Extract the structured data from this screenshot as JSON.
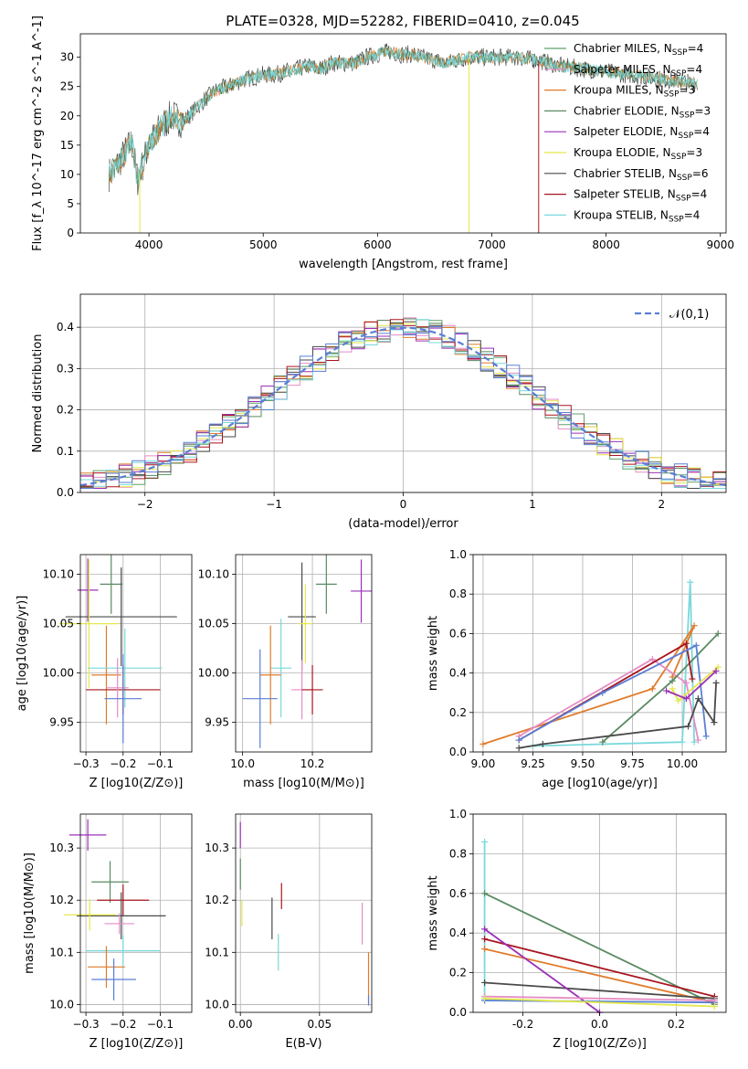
{
  "title": "PLATE=0328, MJD=52282, FIBERID=0410, z=0.045",
  "colors": {
    "Chabrier MILES": "#5fa06a",
    "Salpeter MILES": "#e58cc4",
    "Kroupa MILES": "#e07b2a",
    "Chabrier ELODIE": "#5a8a62",
    "Salpeter ELODIE": "#9b30b8",
    "Kroupa ELODIE": "#e4e84a",
    "Chabrier STELIB": "#4a4a4a",
    "Salpeter STELIB": "#a8141e",
    "Kroupa STELIB": "#7ad8dc",
    "extra_blue": "#5a7fd6"
  },
  "chart_data": [
    {
      "id": "spectrum",
      "type": "line",
      "title": "PLATE=0328, MJD=52282, FIBERID=0410, z=0.045",
      "xlabel": "wavelength [Angstrom, rest frame]",
      "ylabel": "Flux [f_λ 10^-17 erg cm^-2 s^-1 A^-1]",
      "xlim": [
        3400,
        9050
      ],
      "ylim": [
        0,
        34
      ],
      "xticks": [
        4000,
        5000,
        6000,
        7000,
        8000,
        9000
      ],
      "yticks": [
        0,
        5,
        10,
        15,
        20,
        25,
        30
      ],
      "legend_position": "top-right",
      "legend": [
        {
          "label": "Chabrier MILES, N",
          "sub": "SSP",
          "suffix": "=4"
        },
        {
          "label": "Salpeter MILES, N",
          "sub": "SSP",
          "suffix": "=4"
        },
        {
          "label": "Kroupa MILES, N",
          "sub": "SSP",
          "suffix": "=3"
        },
        {
          "label": "Chabrier ELODIE, N",
          "sub": "SSP",
          "suffix": "=3"
        },
        {
          "label": "Salpeter ELODIE, N",
          "sub": "SSP",
          "suffix": "=4"
        },
        {
          "label": "Kroupa ELODIE, N",
          "sub": "SSP",
          "suffix": "=3"
        },
        {
          "label": "Chabrier STELIB, N",
          "sub": "SSP",
          "suffix": "=6"
        },
        {
          "label": "Salpeter STELIB, N",
          "sub": "SSP",
          "suffix": "=4"
        },
        {
          "label": "Kroupa STELIB, N",
          "sub": "SSP",
          "suffix": "=4"
        }
      ],
      "envelope": {
        "x": [
          3650,
          3700,
          3750,
          3800,
          3850,
          3900,
          3950,
          4000,
          4100,
          4200,
          4300,
          4400,
          4500,
          4600,
          4700,
          4800,
          4900,
          5000,
          5100,
          5200,
          5300,
          5400,
          5500,
          5600,
          5700,
          5800,
          5900,
          6000,
          6100,
          6200,
          6300,
          6400,
          6500,
          6600,
          6700,
          6800,
          6900,
          7000,
          7200,
          7400,
          7600,
          7800,
          8000,
          8200,
          8400,
          8600,
          8800
        ],
        "y": [
          10,
          11,
          12.5,
          14,
          15.5,
          9,
          12,
          15,
          18,
          20,
          19,
          21,
          23,
          24.5,
          25,
          26,
          26.5,
          27,
          27,
          27.5,
          28,
          28.5,
          28,
          29,
          29,
          29,
          30,
          30.5,
          31,
          30.5,
          30.5,
          30,
          29.5,
          29,
          29.5,
          30,
          30,
          30,
          30,
          29.5,
          28.5,
          28,
          27.5,
          27,
          26.5,
          26,
          25.5
        ]
      },
      "spikes": [
        {
          "x": 3920,
          "y": 0,
          "color": "Kroupa ELODIE"
        },
        {
          "x": 6800,
          "y": 0,
          "color": "Kroupa ELODIE"
        },
        {
          "x": 7410,
          "y": 0,
          "color": "Salpeter STELIB"
        }
      ]
    },
    {
      "id": "residuals",
      "type": "step",
      "xlabel": "(data-model)/error",
      "ylabel": "Normed distribution",
      "xlim": [
        -2.5,
        2.5
      ],
      "ylim": [
        0,
        0.48
      ],
      "xticks": [
        -2,
        -1,
        0,
        1,
        2
      ],
      "yticks": [
        0.0,
        0.1,
        0.2,
        0.3,
        0.4
      ],
      "legend_position": "top-right",
      "reference_curve": {
        "label": "𝒩(0,1)",
        "mean": 0,
        "sd": 1
      },
      "bin_width": 0.1
    },
    {
      "id": "age_vs_Z",
      "type": "scatter",
      "xlabel": "Z [log10(Z/Z⊙)]",
      "ylabel": "age  [log10(age/yr)]",
      "xlim": [
        -0.315,
        -0.015
      ],
      "ylim": [
        9.92,
        10.12
      ],
      "xticks": [
        -0.3,
        -0.2,
        -0.1
      ],
      "yticks": [
        9.95,
        10.0,
        10.05,
        10.1
      ],
      "points": [
        {
          "color": "Salpeter ELODIE",
          "x": -0.295,
          "y": 10.084,
          "xerr": 0.028,
          "yerr": 0.032
        },
        {
          "color": "Chabrier ELODIE",
          "x": -0.232,
          "y": 10.09,
          "xerr": 0.03,
          "yerr": 0.03
        },
        {
          "color": "Chabrier STELIB",
          "x": -0.205,
          "y": 10.057,
          "xerr": 0.15,
          "yerr": 0.05
        },
        {
          "color": "Kroupa ELODIE",
          "x": -0.292,
          "y": 10.05,
          "xerr": 0.08,
          "yerr": 0.065
        },
        {
          "color": "Kroupa MILES",
          "x": -0.245,
          "y": 9.998,
          "xerr": 0.04,
          "yerr": 0.05
        },
        {
          "color": "Kroupa STELIB",
          "x": -0.195,
          "y": 10.005,
          "xerr": 0.1,
          "yerr": 0.04
        },
        {
          "color": "Salpeter STELIB",
          "x": -0.2,
          "y": 9.983,
          "xerr": 0.1,
          "yerr": 0.025
        },
        {
          "color": "Salpeter MILES",
          "x": -0.215,
          "y": 9.985,
          "xerr": 0.03,
          "yerr": 0.03
        },
        {
          "color": "extra_blue",
          "x": -0.2,
          "y": 9.974,
          "xerr": 0.05,
          "yerr": 0.045
        }
      ]
    },
    {
      "id": "age_vs_mass",
      "type": "scatter",
      "xlabel": "mass [log10(M/M⊙)]",
      "ylabel": "",
      "xlim": [
        9.98,
        10.37
      ],
      "ylim": [
        9.92,
        10.12
      ],
      "xticks": [
        10.0,
        10.2
      ],
      "yticks": [
        9.95,
        10.0,
        10.05,
        10.1
      ],
      "points": [
        {
          "color": "Salpeter ELODIE",
          "x": 10.34,
          "y": 10.083,
          "xerr": 0.03,
          "yerr": 0.032
        },
        {
          "color": "Chabrier ELODIE",
          "x": 10.24,
          "y": 10.09,
          "xerr": 0.03,
          "yerr": 0.03
        },
        {
          "color": "Chabrier STELIB",
          "x": 10.17,
          "y": 10.057,
          "xerr": 0.04,
          "yerr": 0.055
        },
        {
          "color": "Kroupa ELODIE",
          "x": 10.18,
          "y": 10.05,
          "xerr": 0.02,
          "yerr": 0.04
        },
        {
          "color": "Kroupa STELIB",
          "x": 10.11,
          "y": 10.005,
          "xerr": 0.03,
          "yerr": 0.05
        },
        {
          "color": "Kroupa MILES",
          "x": 10.08,
          "y": 9.998,
          "xerr": 0.03,
          "yerr": 0.05
        },
        {
          "color": "Salpeter MILES",
          "x": 10.17,
          "y": 9.983,
          "xerr": 0.03,
          "yerr": 0.03
        },
        {
          "color": "Salpeter STELIB",
          "x": 10.2,
          "y": 9.983,
          "xerr": 0.03,
          "yerr": 0.025
        },
        {
          "color": "extra_blue",
          "x": 10.05,
          "y": 9.974,
          "xerr": 0.05,
          "yerr": 0.05
        }
      ]
    },
    {
      "id": "mass_weight_vs_age",
      "type": "line",
      "xlabel": "age  [log10(age/yr)]",
      "ylabel": "mass weight",
      "xlim": [
        8.95,
        10.22
      ],
      "ylim": [
        0.0,
        1.0
      ],
      "xticks": [
        9.0,
        9.25,
        9.5,
        9.75,
        10.0
      ],
      "yticks": [
        0.0,
        0.2,
        0.4,
        0.6,
        0.8,
        1.0
      ],
      "series": [
        {
          "color": "Kroupa STELIB",
          "x": [
            9.25,
            10.0,
            10.04,
            10.06
          ],
          "y": [
            0.03,
            0.05,
            0.86,
            0.05
          ]
        },
        {
          "color": "Kroupa MILES",
          "x": [
            9.0,
            9.85,
            10.06,
            9.95
          ],
          "y": [
            0.04,
            0.32,
            0.64,
            0.38
          ]
        },
        {
          "color": "Salpeter MILES",
          "x": [
            9.18,
            9.85,
            10.02,
            10.08
          ],
          "y": [
            0.08,
            0.47,
            0.35,
            0.06
          ]
        },
        {
          "color": "Chabrier ELODIE",
          "x": [
            9.6,
            9.95,
            10.18
          ],
          "y": [
            0.05,
            0.36,
            0.6
          ]
        },
        {
          "color": "Salpeter STELIB",
          "x": [
            9.18,
            10.02,
            10.05
          ],
          "y": [
            0.06,
            0.55,
            0.37
          ]
        },
        {
          "color": "extra_blue",
          "x": [
            9.18,
            9.6,
            10.07,
            10.12
          ],
          "y": [
            0.06,
            0.3,
            0.54,
            0.08
          ]
        },
        {
          "color": "Chabrier STELIB",
          "x": [
            9.18,
            9.3,
            10.03,
            10.08,
            10.16,
            10.17
          ],
          "y": [
            0.02,
            0.04,
            0.13,
            0.27,
            0.15,
            0.35
          ]
        },
        {
          "color": "Kroupa ELODIE",
          "x": [
            9.95,
            9.98,
            10.18
          ],
          "y": [
            0.32,
            0.26,
            0.43
          ]
        },
        {
          "color": "Salpeter ELODIE",
          "x": [
            9.92,
            10.02,
            10.17
          ],
          "y": [
            0.31,
            0.27,
            0.41
          ]
        }
      ]
    },
    {
      "id": "mass_vs_Z",
      "type": "scatter",
      "xlabel": "Z [log10(Z/Z⊙)]",
      "ylabel": "mass [log10(M/M⊙)]",
      "xlim": [
        -0.315,
        -0.015
      ],
      "ylim": [
        9.985,
        10.365
      ],
      "xticks": [
        -0.3,
        -0.2,
        -0.1
      ],
      "yticks": [
        10.0,
        10.1,
        10.2,
        10.3
      ],
      "points": [
        {
          "color": "Salpeter ELODIE",
          "x": -0.295,
          "y": 10.325,
          "xerr": 0.05,
          "yerr": 0.03
        },
        {
          "color": "Chabrier ELODIE",
          "x": -0.235,
          "y": 10.235,
          "xerr": 0.05,
          "yerr": 0.04
        },
        {
          "color": "Salpeter STELIB",
          "x": -0.2,
          "y": 10.2,
          "xerr": 0.07,
          "yerr": 0.03
        },
        {
          "color": "Chabrier STELIB",
          "x": -0.205,
          "y": 10.17,
          "xerr": 0.12,
          "yerr": 0.045
        },
        {
          "color": "Kroupa ELODIE",
          "x": -0.29,
          "y": 10.172,
          "xerr": 0.07,
          "yerr": 0.03
        },
        {
          "color": "Salpeter MILES",
          "x": -0.21,
          "y": 10.155,
          "xerr": 0.04,
          "yerr": 0.02
        },
        {
          "color": "Kroupa STELIB",
          "x": -0.2,
          "y": 10.103,
          "xerr": 0.1,
          "yerr": 0.03
        },
        {
          "color": "Kroupa MILES",
          "x": -0.245,
          "y": 10.072,
          "xerr": 0.05,
          "yerr": 0.04
        },
        {
          "color": "extra_blue",
          "x": -0.225,
          "y": 10.048,
          "xerr": 0.06,
          "yerr": 0.04
        }
      ]
    },
    {
      "id": "mass_vs_EBV",
      "type": "scatter",
      "xlabel": "E(B-V)",
      "ylabel": "",
      "xlim": [
        -0.003,
        0.083
      ],
      "ylim": [
        9.985,
        10.365
      ],
      "xticks": [
        0.0,
        0.05
      ],
      "yticks": [
        10.0,
        10.1,
        10.2,
        10.3
      ],
      "points": [
        {
          "color": "Salpeter ELODIE",
          "x": 0.0,
          "y": 10.325,
          "xerr": 0,
          "yerr": 0.025
        },
        {
          "color": "Chabrier ELODIE",
          "x": 0.0,
          "y": 10.25,
          "xerr": 0,
          "yerr": 0.03
        },
        {
          "color": "Salpeter STELIB",
          "x": 0.026,
          "y": 10.208,
          "xerr": 0,
          "yerr": 0.025
        },
        {
          "color": "Kroupa ELODIE",
          "x": 0.001,
          "y": 10.175,
          "xerr": 0,
          "yerr": 0.025
        },
        {
          "color": "Chabrier STELIB",
          "x": 0.02,
          "y": 10.165,
          "xerr": 0,
          "yerr": 0.04
        },
        {
          "color": "Salpeter MILES",
          "x": 0.077,
          "y": 10.155,
          "xerr": 0,
          "yerr": 0.04
        },
        {
          "color": "Kroupa STELIB",
          "x": 0.024,
          "y": 10.1,
          "xerr": 0,
          "yerr": 0.035
        },
        {
          "color": "Kroupa MILES",
          "x": 0.081,
          "y": 10.05,
          "xerr": 0,
          "yerr": 0.05
        },
        {
          "color": "extra_blue",
          "x": 0.081,
          "y": 10.008,
          "xerr": 0,
          "yerr": 0.01
        }
      ]
    },
    {
      "id": "mass_weight_vs_Z",
      "type": "line",
      "xlabel": "Z [log10(Z/Z⊙)]",
      "ylabel": "mass weight",
      "xlim": [
        -0.33,
        0.33
      ],
      "ylim": [
        0.0,
        1.0
      ],
      "xticks": [
        -0.2,
        0.0,
        0.2
      ],
      "yticks": [
        0.0,
        0.2,
        0.4,
        0.6,
        0.8,
        1.0
      ],
      "series": [
        {
          "color": "Kroupa STELIB",
          "x": [
            -0.3,
            -0.3,
            -0.3,
            0.3
          ],
          "y": [
            0.86,
            0.07,
            0.06,
            0.05
          ]
        },
        {
          "color": "Chabrier ELODIE",
          "x": [
            -0.3,
            0.3
          ],
          "y": [
            0.6,
            0.04
          ]
        },
        {
          "color": "Kroupa MILES",
          "x": [
            -0.3,
            0.3
          ],
          "y": [
            0.32,
            0.05
          ]
        },
        {
          "color": "Salpeter STELIB",
          "x": [
            -0.3,
            0.3
          ],
          "y": [
            0.37,
            0.08
          ]
        },
        {
          "color": "Chabrier STELIB",
          "x": [
            -0.3,
            0.3
          ],
          "y": [
            0.15,
            0.07
          ]
        },
        {
          "color": "Salpeter ELODIE",
          "x": [
            -0.3,
            0.0
          ],
          "y": [
            0.42,
            0.0
          ]
        },
        {
          "color": "extra_blue",
          "x": [
            -0.3,
            0.3
          ],
          "y": [
            0.06,
            0.05
          ]
        },
        {
          "color": "Salpeter MILES",
          "x": [
            -0.3,
            0.3
          ],
          "y": [
            0.08,
            0.06
          ]
        },
        {
          "color": "Kroupa ELODIE",
          "x": [
            -0.3,
            0.3
          ],
          "y": [
            0.07,
            0.03
          ]
        }
      ]
    }
  ]
}
